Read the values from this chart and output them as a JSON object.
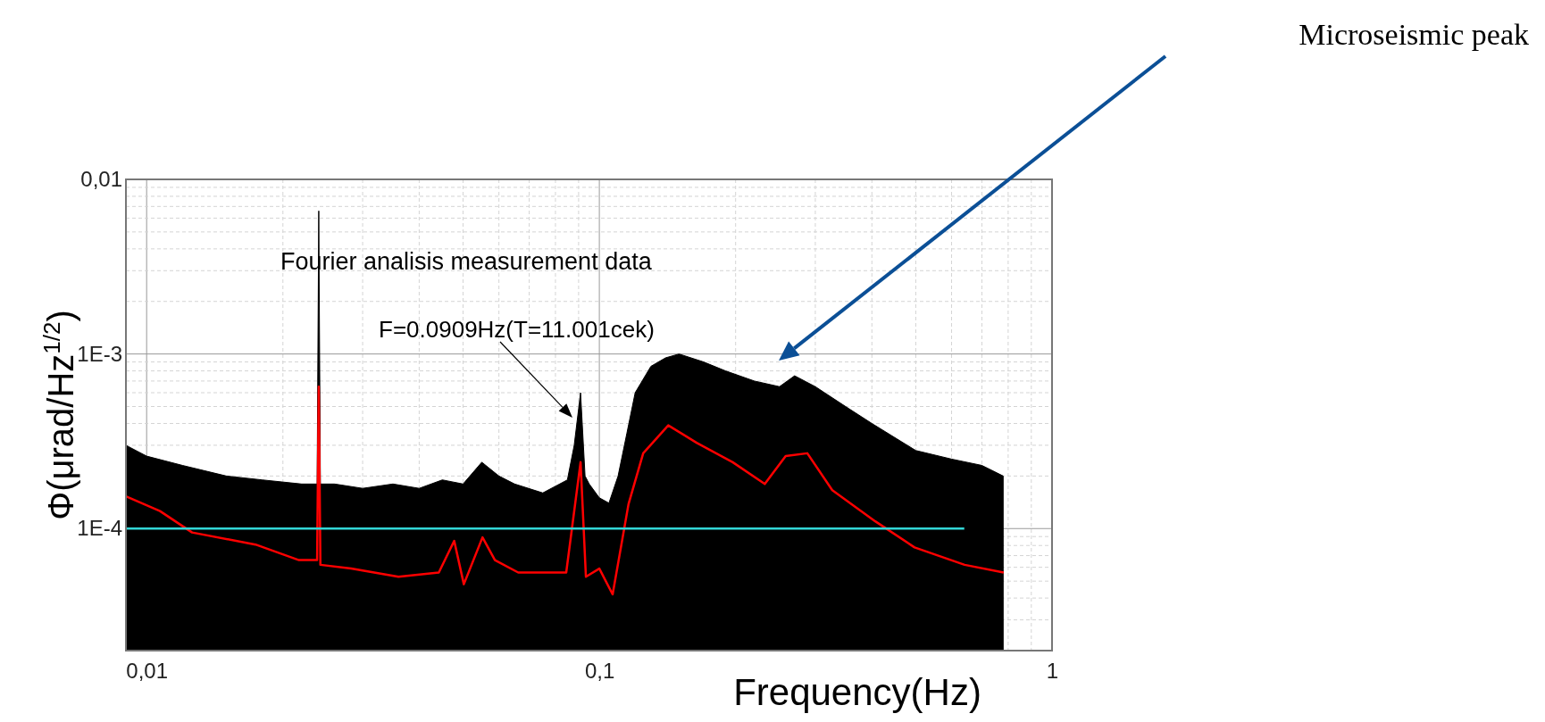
{
  "chart_data": {
    "type": "line",
    "xlabel": "Frequency(Hz)",
    "ylabel": "Φ(μrad/Hz$^{1/2}$)",
    "log": "xy",
    "grid": true,
    "marker": "none",
    "line_style": "solid",
    "xlim": [
      0.009,
      1
    ],
    "ylim": [
      2e-05,
      0.01
    ],
    "xticks": [
      {
        "value": 0.01,
        "label": "0,01"
      },
      {
        "value": 0.1,
        "label": "0,1"
      },
      1
    ],
    "yticks": [
      {
        "value": 0.0001,
        "label": "1E-4"
      },
      {
        "value": 0.001,
        "label": "1E-3"
      },
      {
        "value": 0.01,
        "label": "0,01"
      }
    ],
    "series": [
      {
        "type": "area",
        "color": "#000000",
        "x": [
          0.009,
          0.01,
          0.012,
          0.015,
          0.018,
          0.022,
          0.0238,
          0.024,
          0.0242,
          0.026,
          0.03,
          0.035,
          0.04,
          0.045,
          0.05,
          0.055,
          0.06,
          0.065,
          0.075,
          0.085,
          0.088,
          0.0909,
          0.093,
          0.095,
          0.1,
          0.105,
          0.11,
          0.115,
          0.12,
          0.13,
          0.14,
          0.15,
          0.17,
          0.19,
          0.22,
          0.25,
          0.27,
          0.3,
          0.35,
          0.4,
          0.5,
          0.6,
          0.7,
          0.78
        ],
        "values": [
          0.0003,
          0.00026,
          0.00023,
          0.0002,
          0.00019,
          0.00018,
          0.00018,
          0.0066,
          0.00018,
          0.00018,
          0.00017,
          0.00018,
          0.00017,
          0.00019,
          0.00018,
          0.00024,
          0.0002,
          0.00018,
          0.00016,
          0.00019,
          0.0003,
          0.0006,
          0.0002,
          0.00018,
          0.00015,
          0.00014,
          0.0002,
          0.00035,
          0.0006,
          0.00085,
          0.00095,
          0.001,
          0.0009,
          0.0008,
          0.0007,
          0.00065,
          0.00075,
          0.00065,
          0.0005,
          0.0004,
          0.00028,
          0.00025,
          0.00023,
          0.0002
        ]
      },
      {
        "color": "#ff0000",
        "x": [
          0.009,
          0.0107,
          0.0126,
          0.0174,
          0.0217,
          0.0238,
          0.024,
          0.0242,
          0.0283,
          0.036,
          0.0442,
          0.0478,
          0.0502,
          0.0552,
          0.0588,
          0.0662,
          0.0845,
          0.0909,
          0.0934,
          0.1,
          0.107,
          0.116,
          0.125,
          0.142,
          0.164,
          0.197,
          0.232,
          0.258,
          0.288,
          0.327,
          0.407,
          0.497,
          0.641,
          0.782
        ],
        "values": [
          0.000153,
          0.000126,
          9.5e-05,
          8.1e-05,
          6.6e-05,
          6.6e-05,
          0.00065,
          6.2e-05,
          5.9e-05,
          5.3e-05,
          5.6e-05,
          8.5e-05,
          4.8e-05,
          8.9e-05,
          6.6e-05,
          5.6e-05,
          5.6e-05,
          0.00024,
          5.3e-05,
          5.9e-05,
          4.2e-05,
          0.000138,
          0.00027,
          0.00039,
          0.00031,
          0.00024,
          0.00018,
          0.00026,
          0.00027,
          0.000166,
          0.00011,
          7.8e-05,
          6.2e-05,
          5.6e-05
        ]
      },
      {
        "color": "#33d6d6",
        "x": [
          0.009,
          0.64
        ],
        "values": [
          0.0001,
          0.0001
        ]
      }
    ],
    "annotations": [
      "Fourier analisis measurement data",
      "F=0.0909Hz(T=11.001cek)",
      "Microseismic peak"
    ]
  }
}
